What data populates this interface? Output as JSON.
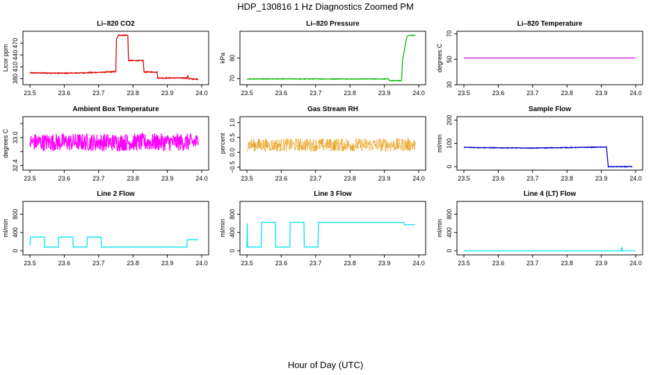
{
  "figure": {
    "title": "HDP_130816  1 Hz Diagnostics Zoomed PM",
    "xlabel": "Hour of Day (UTC)"
  },
  "chart_data": [
    {
      "type": "line",
      "title": "Li–820 CO2",
      "ylabel": "Licor ppm",
      "xlim": [
        23.5,
        24.0
      ],
      "ylim": [
        365,
        500
      ],
      "xticks": [
        "23.5",
        "23.6",
        "23.7",
        "23.8",
        "23.9",
        "24.0"
      ],
      "yticks": [
        {
          "v": 380,
          "label": "380"
        },
        {
          "v": 410,
          "label": "410"
        },
        {
          "v": 440,
          "label": "440"
        },
        {
          "v": 470,
          "label": "470"
        }
      ],
      "series": [
        {
          "name": "CO2",
          "color": "#dd0000",
          "noise": 1.2,
          "x": [
            23.5,
            23.6,
            23.7,
            23.75,
            23.752,
            23.758,
            23.785,
            23.787,
            23.83,
            23.832,
            23.87,
            23.872,
            23.958,
            23.96,
            23.962,
            23.98,
            23.99
          ],
          "y": [
            395,
            394,
            396,
            398,
            480,
            490,
            490,
            426,
            426,
            397,
            397,
            382,
            382,
            388,
            380,
            379,
            379
          ]
        }
      ]
    },
    {
      "type": "line",
      "title": "Li–820 Pressure",
      "ylabel": "kPa",
      "xlim": [
        23.5,
        24.0
      ],
      "ylim": [
        67,
        93
      ],
      "xticks": [
        "23.5",
        "23.6",
        "23.7",
        "23.8",
        "23.9",
        "24.0"
      ],
      "yticks": [
        {
          "v": 70,
          "label": "70"
        },
        {
          "v": 80,
          "label": "80"
        }
      ],
      "series": [
        {
          "name": "Pressure",
          "color": "#00bb00",
          "noise": 0.15,
          "x": [
            23.5,
            23.6,
            23.7,
            23.8,
            23.9,
            23.912,
            23.915,
            23.95,
            23.953,
            23.965,
            23.97,
            23.99
          ],
          "y": [
            69.8,
            69.8,
            69.8,
            69.8,
            69.8,
            69.8,
            69.0,
            69.0,
            79.0,
            90.0,
            91.0,
            91.0
          ]
        }
      ]
    },
    {
      "type": "line",
      "title": "Li–820 Temperature",
      "ylabel": "degrees C",
      "xlim": [
        23.5,
        24.0
      ],
      "ylim": [
        30,
        72
      ],
      "xticks": [
        "23.5",
        "23.6",
        "23.7",
        "23.8",
        "23.9",
        "24.0"
      ],
      "yticks": [
        {
          "v": 30,
          "label": "30"
        },
        {
          "v": 50,
          "label": "50"
        },
        {
          "v": 70,
          "label": "70"
        }
      ],
      "series": [
        {
          "name": "Temperature",
          "color": "#cc00cc",
          "noise": 0,
          "x": [
            23.5,
            24.0
          ],
          "y": [
            51.0,
            51.0
          ]
        }
      ]
    },
    {
      "type": "line",
      "title": "Ambient Box Temperature",
      "ylabel": "degrees C",
      "xlim": [
        23.5,
        24.0
      ],
      "ylim": [
        32.3,
        33.45
      ],
      "xticks": [
        "23.5",
        "23.6",
        "23.7",
        "23.8",
        "23.9",
        "24.0"
      ],
      "yticks": [
        {
          "v": 32.4,
          "label": "32.4"
        },
        {
          "v": 32.7,
          "label": ""
        },
        {
          "v": 33.0,
          "label": "33.0"
        },
        {
          "v": 33.3,
          "label": ""
        }
      ],
      "series": [
        {
          "name": "Box Temp",
          "color": "#ff00ff",
          "noise": 0.19,
          "x": [
            23.5,
            23.99
          ],
          "y": [
            32.9,
            32.9
          ]
        }
      ]
    },
    {
      "type": "line",
      "title": "Gas Stream RH",
      "ylabel": "percent",
      "xlim": [
        23.5,
        24.0
      ],
      "ylim": [
        -0.6,
        1.2
      ],
      "xticks": [
        "23.5",
        "23.6",
        "23.7",
        "23.8",
        "23.9",
        "24.0"
      ],
      "yticks": [
        {
          "v": -0.5,
          "label": "−0.5"
        },
        {
          "v": 0,
          "label": "0.0"
        },
        {
          "v": 0.5,
          "label": "0.5"
        },
        {
          "v": 1.0,
          "label": "1.0"
        }
      ],
      "series": [
        {
          "name": "RH",
          "color": "#e69500",
          "noise": 0.22,
          "dotted": true,
          "x": [
            23.5,
            23.99
          ],
          "y": [
            0.25,
            0.25
          ]
        }
      ]
    },
    {
      "type": "line",
      "title": "Sample Flow",
      "ylabel": "ml/min",
      "xlim": [
        23.5,
        24.0
      ],
      "ylim": [
        -15,
        215
      ],
      "xticks": [
        "23.5",
        "23.6",
        "23.7",
        "23.8",
        "23.9",
        "24.0"
      ],
      "yticks": [
        {
          "v": 0,
          "label": "0"
        },
        {
          "v": 100,
          "label": "100"
        },
        {
          "v": 200,
          "label": "200"
        }
      ],
      "series": [
        {
          "name": "Sample Flow",
          "color": "#0000cc",
          "noise": 1.5,
          "x": [
            23.5,
            23.6,
            23.7,
            23.8,
            23.9,
            23.915,
            23.92,
            23.99
          ],
          "y": [
            83,
            81,
            80,
            82,
            84,
            84,
            0,
            0
          ]
        }
      ]
    },
    {
      "type": "line",
      "title": "Line 2 Flow",
      "ylabel": "ml/min",
      "xlim": [
        23.5,
        24.0
      ],
      "ylim": [
        -90,
        1080
      ],
      "xticks": [
        "23.5",
        "23.6",
        "23.7",
        "23.8",
        "23.9",
        "24.0"
      ],
      "yticks": [
        {
          "v": 0,
          "label": "0"
        },
        {
          "v": 400,
          "label": "400"
        },
        {
          "v": 800,
          "label": "800"
        }
      ],
      "series": [
        {
          "name": "Line 2",
          "color": "#00e5ee",
          "noise": 0,
          "x": [
            23.5,
            23.502,
            23.542,
            23.543,
            23.583,
            23.584,
            23.625,
            23.626,
            23.666,
            23.667,
            23.707,
            23.708,
            23.957,
            23.958,
            23.99
          ],
          "y": [
            110,
            300,
            300,
            80,
            80,
            300,
            300,
            80,
            80,
            300,
            300,
            80,
            80,
            240,
            240
          ]
        }
      ]
    },
    {
      "type": "line",
      "title": "Line 3 Flow",
      "ylabel": "ml/min",
      "xlim": [
        23.5,
        24.0
      ],
      "ylim": [
        -90,
        1080
      ],
      "xticks": [
        "23.5",
        "23.6",
        "23.7",
        "23.8",
        "23.9",
        "24.0"
      ],
      "yticks": [
        {
          "v": 0,
          "label": "0"
        },
        {
          "v": 400,
          "label": "400"
        },
        {
          "v": 800,
          "label": "800"
        }
      ],
      "series": [
        {
          "name": "Line 3",
          "color": "#00e5ee",
          "noise": 0,
          "x": [
            23.5,
            23.501,
            23.502,
            23.542,
            23.543,
            23.583,
            23.584,
            23.625,
            23.626,
            23.666,
            23.667,
            23.707,
            23.708,
            23.957,
            23.958,
            23.99
          ],
          "y": [
            70,
            600,
            80,
            80,
            620,
            620,
            80,
            80,
            620,
            620,
            80,
            80,
            620,
            620,
            570,
            570
          ]
        }
      ]
    },
    {
      "type": "line",
      "title": "Line 4 (LT) Flow",
      "ylabel": "ml/min",
      "xlim": [
        23.5,
        24.0
      ],
      "ylim": [
        -90,
        1080
      ],
      "xticks": [
        "23.5",
        "23.6",
        "23.7",
        "23.8",
        "23.9",
        "24.0"
      ],
      "yticks": [
        {
          "v": 0,
          "label": "0"
        },
        {
          "v": 400,
          "label": "400"
        },
        {
          "v": 800,
          "label": "800"
        }
      ],
      "series": [
        {
          "name": "Line 4",
          "color": "#00e5ee",
          "noise": 0,
          "x": [
            23.5,
            23.958,
            23.9585,
            23.959,
            23.96,
            23.961,
            24.0
          ],
          "y": [
            0,
            0,
            60,
            0,
            80,
            0,
            0
          ]
        }
      ]
    }
  ]
}
